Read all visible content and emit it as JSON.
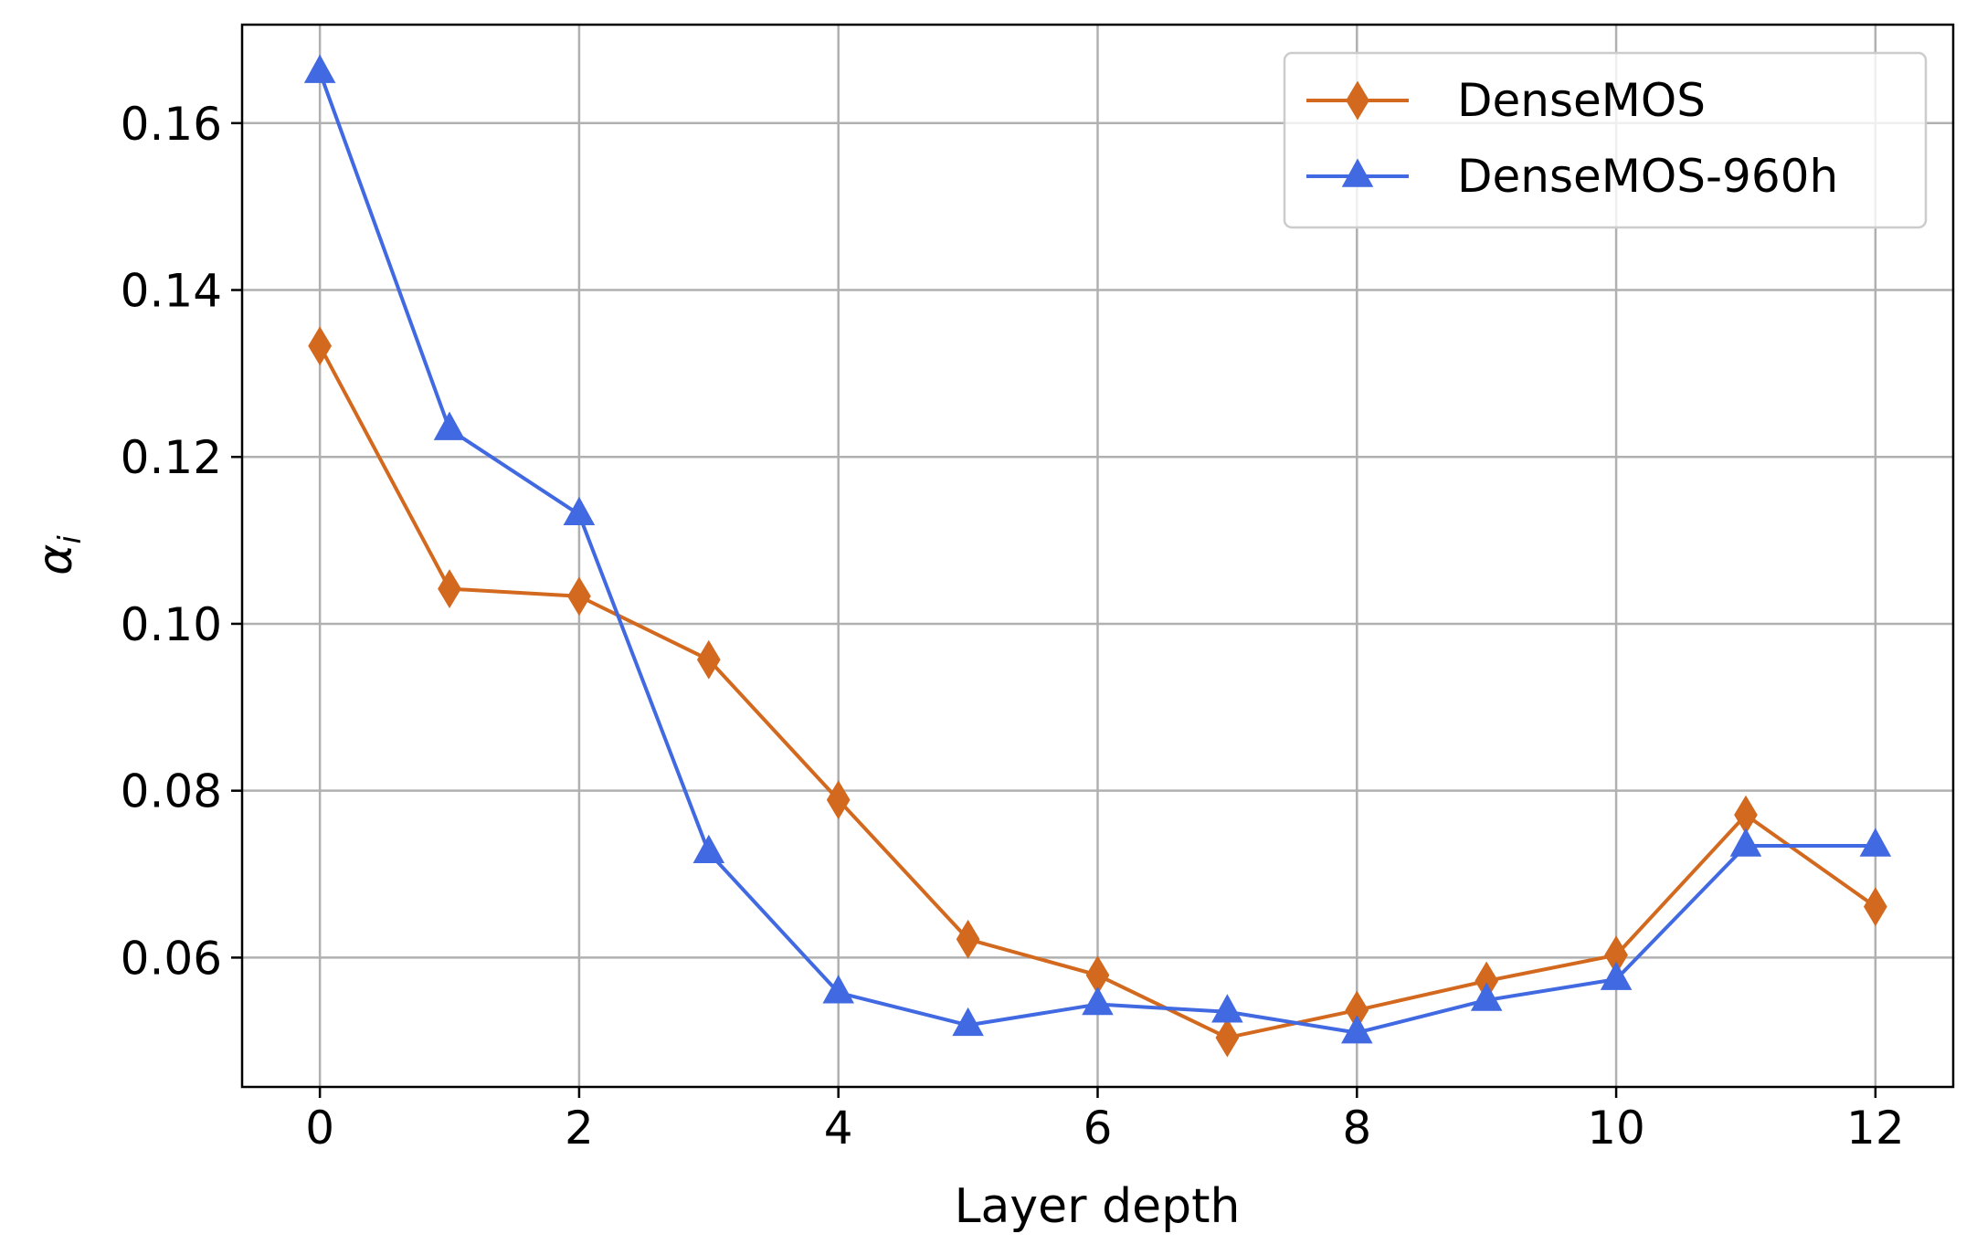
{
  "chart_data": {
    "type": "line",
    "xlabel": "Layer depth",
    "ylabel": "α",
    "ylabel_subscript": "i",
    "xlim": [
      -0.6,
      12.6
    ],
    "ylim": [
      0.0445,
      0.1718
    ],
    "xticks": [
      0,
      2,
      4,
      6,
      8,
      10,
      12
    ],
    "xtick_labels": [
      "0",
      "2",
      "4",
      "6",
      "8",
      "10",
      "12"
    ],
    "yticks": [
      0.06,
      0.08,
      0.1,
      0.12,
      0.14,
      0.16
    ],
    "ytick_labels": [
      "0.06",
      "0.08",
      "0.10",
      "0.12",
      "0.14",
      "0.16"
    ],
    "grid": true,
    "legend_position": "top-right",
    "x": [
      0,
      1,
      2,
      3,
      4,
      5,
      6,
      7,
      8,
      9,
      10,
      11,
      12
    ],
    "series": [
      {
        "name": "DenseMOS",
        "color": "#d2691e",
        "marker": "thin-diamond",
        "values": [
          0.1333,
          0.1042,
          0.1033,
          0.0957,
          0.0789,
          0.0622,
          0.0579,
          0.0504,
          0.0537,
          0.0572,
          0.0603,
          0.0771,
          0.0661
        ]
      },
      {
        "name": "DenseMOS-960h",
        "color": "#4169e1",
        "marker": "triangle-up",
        "values": [
          0.1661,
          0.1233,
          0.1131,
          0.0726,
          0.0558,
          0.0519,
          0.0544,
          0.0535,
          0.051,
          0.0549,
          0.0574,
          0.0734,
          0.0734
        ]
      }
    ]
  }
}
